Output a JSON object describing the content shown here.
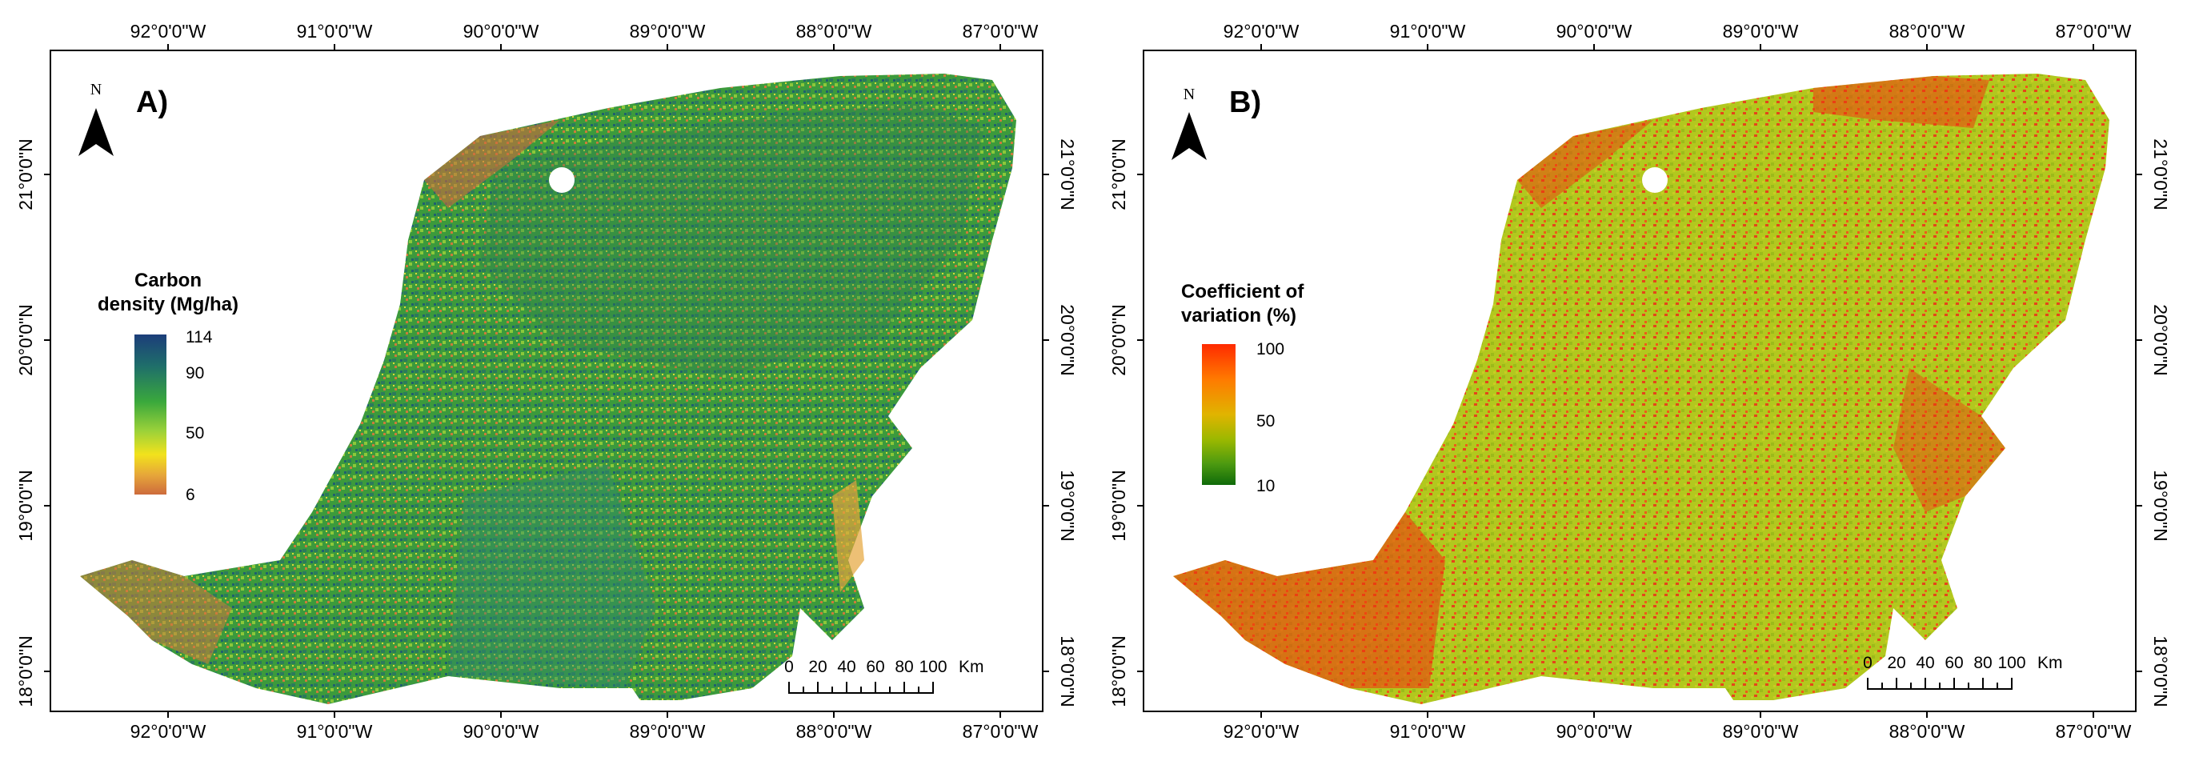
{
  "colors": {
    "carbon_ramp": [
      "#1c3d7a",
      "#1f6f6a",
      "#3aa83c",
      "#9ad13a",
      "#f2e21c",
      "#e6a53a",
      "#cd6b3c"
    ],
    "cv_ramp": [
      "#ff2a00",
      "#ff7a00",
      "#e0b400",
      "#9ab800",
      "#4c9a10",
      "#0f6a0a"
    ],
    "frame": "#000000"
  },
  "panels": [
    {
      "label": "A)",
      "north_label": "N",
      "legend": {
        "title_line1": "Carbon",
        "title_line2": "density (Mg/ha)",
        "max_label": "114",
        "mid_high_label": "90",
        "mid_label": "50",
        "min_label": "6"
      },
      "scalebar": {
        "ticks": [
          "0",
          "20",
          "40",
          "60",
          "80",
          "100"
        ],
        "unit": "Km"
      },
      "map_fill": "carbon"
    },
    {
      "label": "B)",
      "north_label": "N",
      "legend": {
        "title_line1": "Coefficient  of",
        "title_line2": "variation  (%)",
        "max_label": "100",
        "mid_label": "50",
        "min_label": "10"
      },
      "scalebar": {
        "ticks": [
          "0",
          "20",
          "40",
          "60",
          "80",
          "100"
        ],
        "unit": "Km"
      },
      "map_fill": "cv"
    }
  ],
  "axes": {
    "lon_labels": [
      "92°0'0\"W",
      "91°0'0\"W",
      "90°0'0\"W",
      "89°0'0\"W",
      "88°0'0\"W",
      "87°0'0\"W"
    ],
    "lat_labels": [
      "21°0'0\"N",
      "20°0'0\"N",
      "19°0'0\"N",
      "18°0'0\"N"
    ]
  }
}
